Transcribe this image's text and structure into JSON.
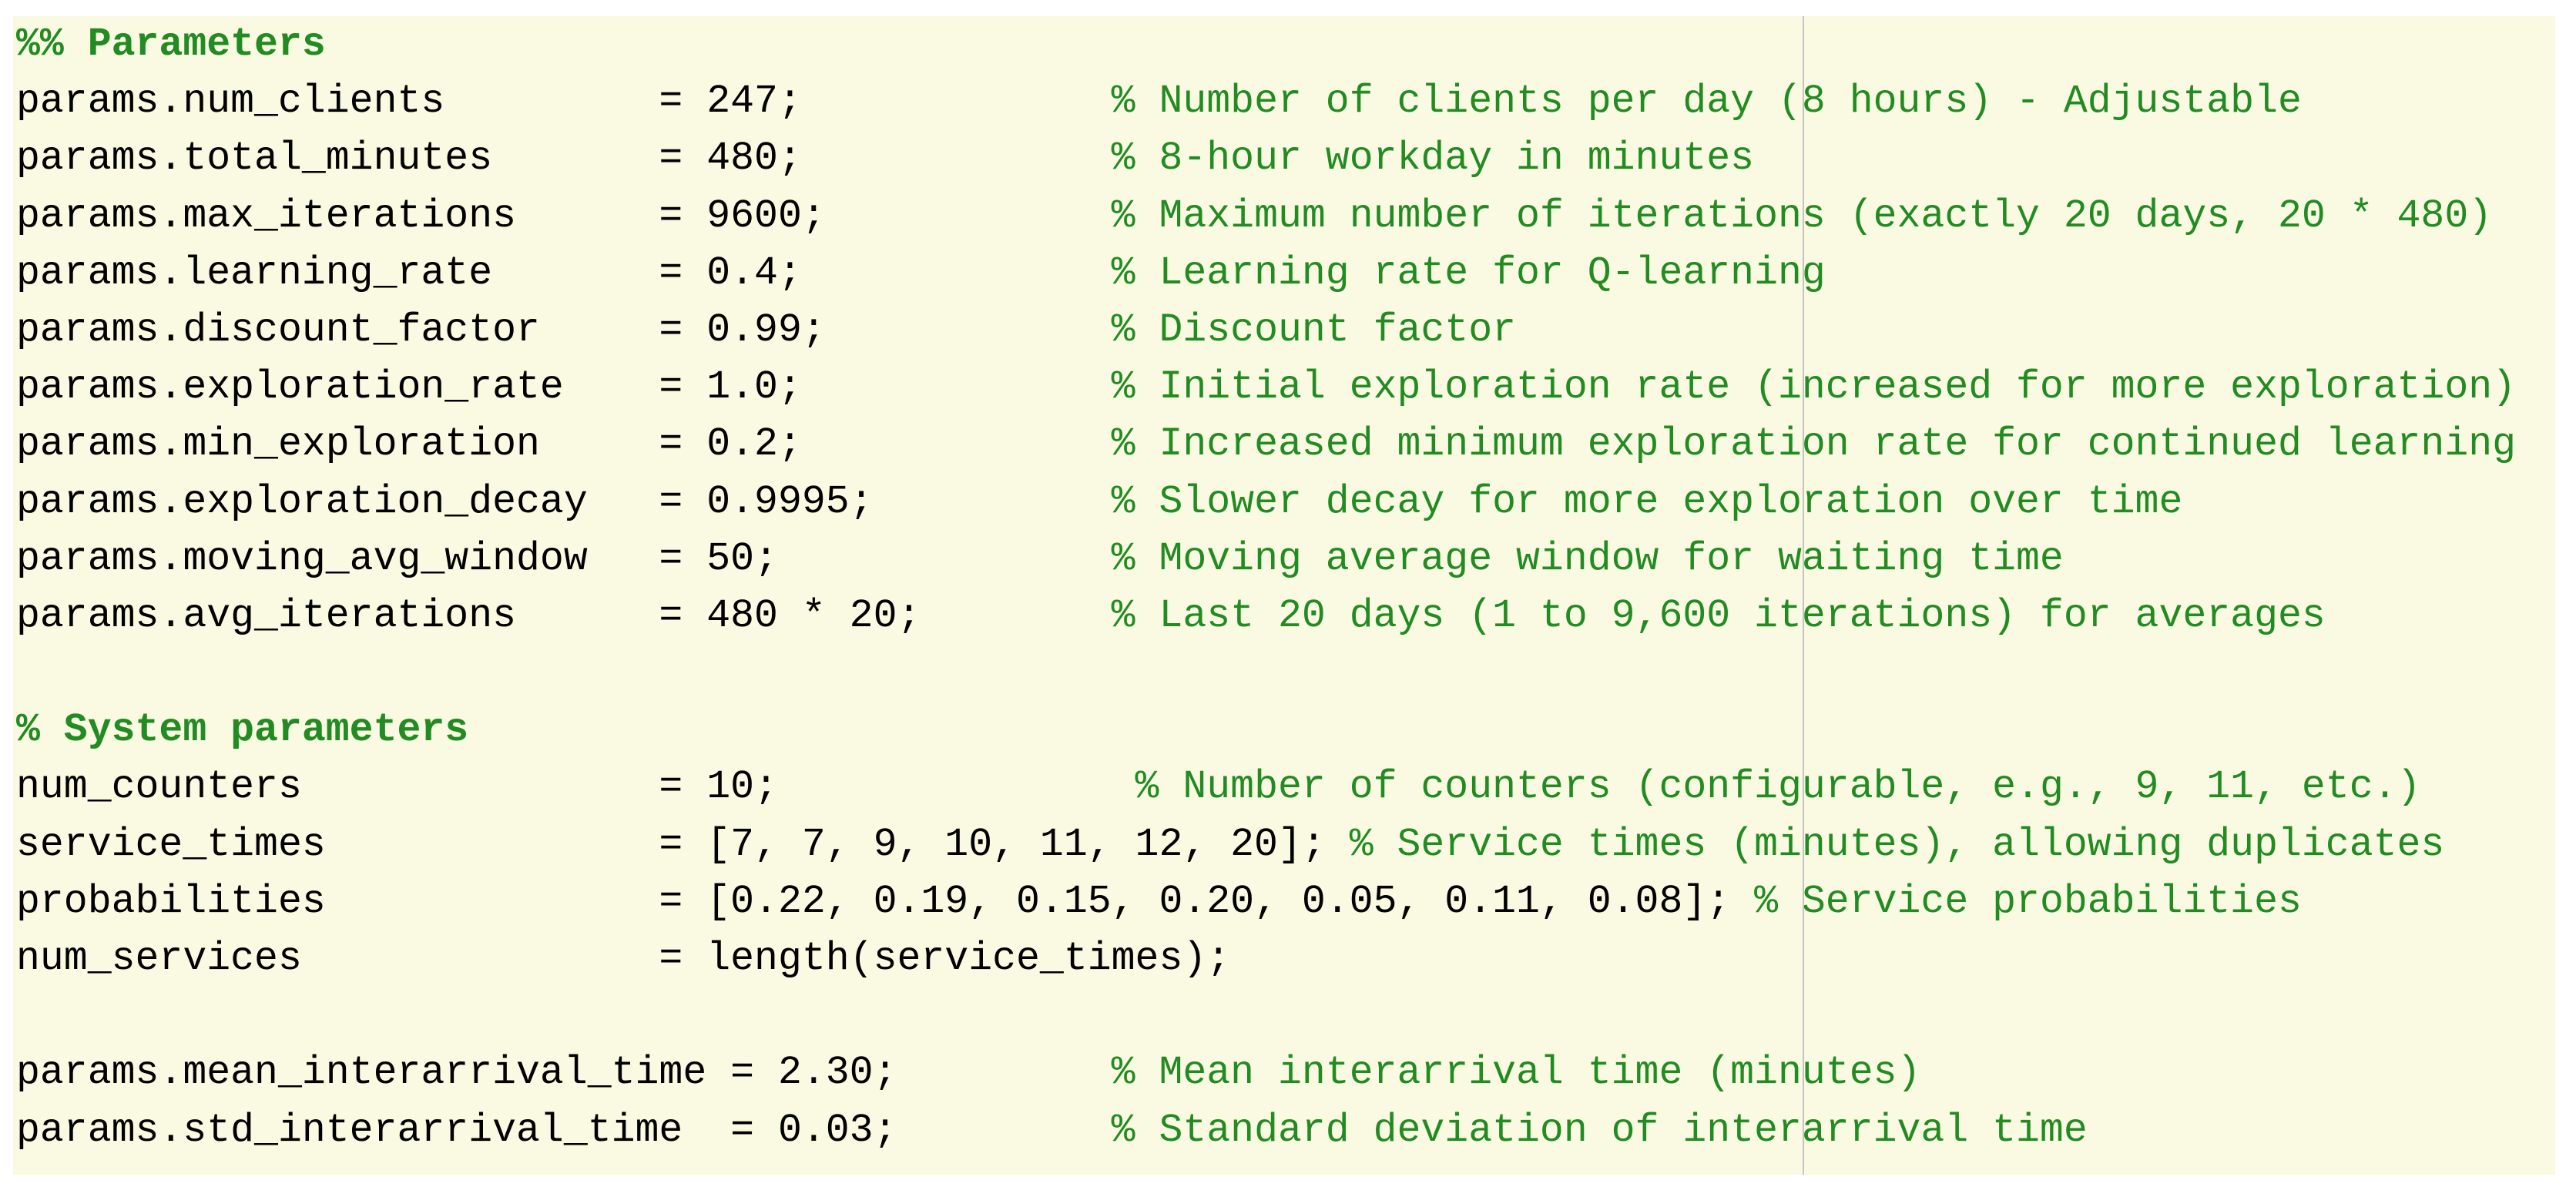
{
  "sections": [
    {
      "title": "%% Parameters",
      "lines": [
        {
          "code": "params.num_clients         = 247;             ",
          "comment": "% Number of clients per day (8 hours) - Adjustable"
        },
        {
          "code": "params.total_minutes       = 480;             ",
          "comment": "% 8-hour workday in minutes"
        },
        {
          "code": "params.max_iterations      = 9600;            ",
          "comment": "% Maximum number of iterations (exactly 20 days, 20 * 480)"
        },
        {
          "code": "params.learning_rate       = 0.4;             ",
          "comment": "% Learning rate for Q-learning"
        },
        {
          "code": "params.discount_factor     = 0.99;            ",
          "comment": "% Discount factor"
        },
        {
          "code": "params.exploration_rate    = 1.0;             ",
          "comment": "% Initial exploration rate (increased for more exploration)"
        },
        {
          "code": "params.min_exploration     = 0.2;             ",
          "comment": "% Increased minimum exploration rate for continued learning"
        },
        {
          "code": "params.exploration_decay   = 0.9995;          ",
          "comment": "% Slower decay for more exploration over time"
        },
        {
          "code": "params.moving_avg_window   = 50;              ",
          "comment": "% Moving average window for waiting time"
        },
        {
          "code": "params.avg_iterations      = 480 * 20;        ",
          "comment": "% Last 20 days (1 to 9,600 iterations) for averages"
        }
      ]
    },
    {
      "title": "% System parameters",
      "lines": [
        {
          "code": "num_counters               = 10;               ",
          "comment": "% Number of counters (configurable, e.g., 9, 11, etc.)"
        },
        {
          "code": "service_times              = [7, 7, 9, 10, 11, 12, 20]; ",
          "comment": "% Service times (minutes), allowing duplicates"
        },
        {
          "code": "probabilities              = [0.22, 0.19, 0.15, 0.20, 0.05, 0.11, 0.08]; ",
          "comment": "% Service probabilities"
        },
        {
          "code": "num_services               = length(service_times);"
        }
      ]
    },
    {
      "lines": [
        {
          "code": "params.mean_interarrival_time = 2.30;         ",
          "comment": "% Mean interarrival time (minutes)"
        },
        {
          "code": "params.std_interarrival_time  = 0.03;         ",
          "comment": "% Standard deviation of interarrival time"
        }
      ]
    }
  ]
}
